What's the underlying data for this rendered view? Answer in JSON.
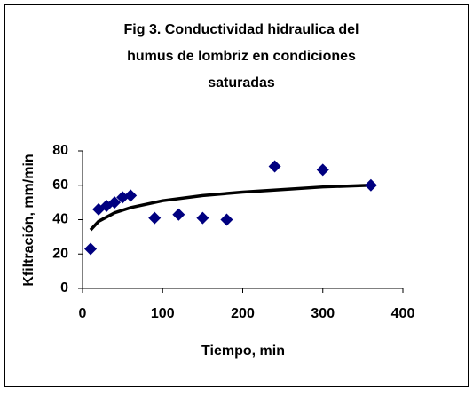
{
  "chart_data": {
    "type": "scatter",
    "title": [
      "Fig 3. Conductividad hidraulica del",
      "humus de lombriz en condiciones",
      "saturadas"
    ],
    "xlabel": "Tiempo, min",
    "ylabel": "Kfiltración, mm/min",
    "x": [
      10,
      20,
      30,
      40,
      50,
      60,
      90,
      120,
      150,
      180,
      240,
      300,
      360
    ],
    "values": [
      23,
      46,
      48,
      50,
      53,
      54,
      41,
      43,
      41,
      40,
      71,
      69,
      60
    ],
    "color": "#000080",
    "trendline": {
      "color": "#000000",
      "x": [
        10,
        20,
        40,
        60,
        100,
        150,
        200,
        250,
        300,
        360
      ],
      "values": [
        34,
        39,
        44,
        47,
        51,
        54,
        56,
        57.5,
        59,
        60
      ]
    },
    "xlim": [
      0,
      400
    ],
    "xticks": [
      0,
      100,
      200,
      300,
      400
    ],
    "ylim": [
      0,
      80
    ],
    "yticks": [
      0,
      20,
      40,
      60,
      80
    ]
  }
}
